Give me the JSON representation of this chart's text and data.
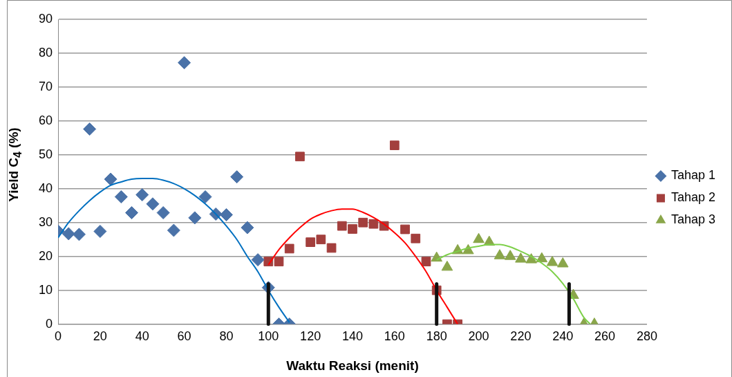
{
  "chart_data": {
    "type": "scatter",
    "xlabel": "Waktu Reaksi (menit)",
    "ylabel": "Yield C$_{4}$ (%)",
    "xlim": [
      0,
      280
    ],
    "xticks": [
      0,
      20,
      40,
      60,
      80,
      100,
      120,
      140,
      160,
      180,
      200,
      220,
      240,
      260,
      280
    ],
    "ylim": [
      0,
      90
    ],
    "yticks": [
      0,
      10,
      20,
      30,
      40,
      50,
      60,
      70,
      80,
      90
    ],
    "grid": "y",
    "legend": "right",
    "series": [
      {
        "name": "Tahap 1",
        "marker": "diamond",
        "color": "#4a72a8",
        "x": [
          0,
          5,
          10,
          15,
          20,
          25,
          30,
          35,
          40,
          45,
          50,
          55,
          60,
          65,
          70,
          75,
          80,
          85,
          90,
          95,
          100,
          105,
          110
        ],
        "values": [
          27.5,
          26.7,
          26.5,
          57.6,
          27.4,
          42.8,
          37.6,
          32.9,
          38.2,
          35.5,
          32.9,
          27.7,
          77.2,
          31.4,
          37.6,
          32.5,
          32.3,
          43.5,
          28.5,
          19,
          10.8,
          0,
          0
        ]
      },
      {
        "name": "Tahap 2",
        "marker": "square",
        "color": "#a33f3d",
        "x": [
          100,
          105,
          110,
          115,
          120,
          125,
          130,
          135,
          140,
          145,
          150,
          155,
          160,
          165,
          170,
          175,
          180,
          185,
          190
        ],
        "values": [
          18.5,
          18.5,
          22.3,
          49.5,
          24.2,
          25,
          22.5,
          29,
          28.1,
          30,
          29.6,
          29,
          52.8,
          28,
          25.3,
          18.5,
          10,
          0,
          0
        ]
      },
      {
        "name": "Tahap 3",
        "marker": "triangle",
        "color": "#8aa64a",
        "x": [
          180,
          185,
          190,
          195,
          200,
          205,
          210,
          215,
          220,
          225,
          230,
          235,
          240,
          245,
          250,
          255
        ],
        "values": [
          19.5,
          16.8,
          21.7,
          21.7,
          25,
          24.2,
          20.2,
          20,
          19.2,
          19,
          19.3,
          18.2,
          17.8,
          8.5,
          0,
          0
        ]
      },
      {
        "type": "line",
        "marker": "none",
        "color": "#0070c0",
        "x": [
          0,
          5,
          10,
          15,
          20,
          25,
          30,
          35,
          40,
          45,
          50,
          55,
          60,
          65,
          70,
          75,
          80,
          85,
          90,
          95,
          100,
          105,
          110
        ],
        "values": [
          25.5,
          30,
          33.5,
          36.5,
          39,
          41,
          42,
          42.8,
          43,
          43,
          42.5,
          41.5,
          40,
          38,
          35.5,
          32.5,
          29,
          25,
          20,
          15.5,
          10,
          5,
          0.5
        ]
      },
      {
        "type": "line",
        "marker": "none",
        "color": "#ff0000",
        "x": [
          100,
          105,
          110,
          115,
          120,
          125,
          130,
          135,
          140,
          145,
          150,
          155,
          160,
          165,
          170,
          175,
          180,
          185,
          190
        ],
        "values": [
          17.5,
          22,
          25.5,
          28.5,
          31,
          32.5,
          33.5,
          34,
          34,
          33,
          31.5,
          29.5,
          27,
          24,
          20,
          15.5,
          10,
          5,
          0
        ]
      },
      {
        "type": "line",
        "marker": "none",
        "color": "#7ed04a",
        "x": [
          180,
          185,
          190,
          195,
          200,
          205,
          210,
          215,
          220,
          225,
          230,
          235,
          240,
          245,
          250,
          253
        ],
        "values": [
          19,
          20.5,
          21.5,
          22.5,
          23,
          23.5,
          23.5,
          22.8,
          21.5,
          20,
          18,
          15.5,
          12,
          7.5,
          2,
          0
        ]
      }
    ],
    "ref_lines": [
      {
        "axis": "x",
        "value": 100,
        "color": "#111111"
      },
      {
        "axis": "x",
        "value": 180,
        "color": "#111111"
      },
      {
        "axis": "x",
        "value": 243,
        "color": "#111111"
      }
    ]
  }
}
